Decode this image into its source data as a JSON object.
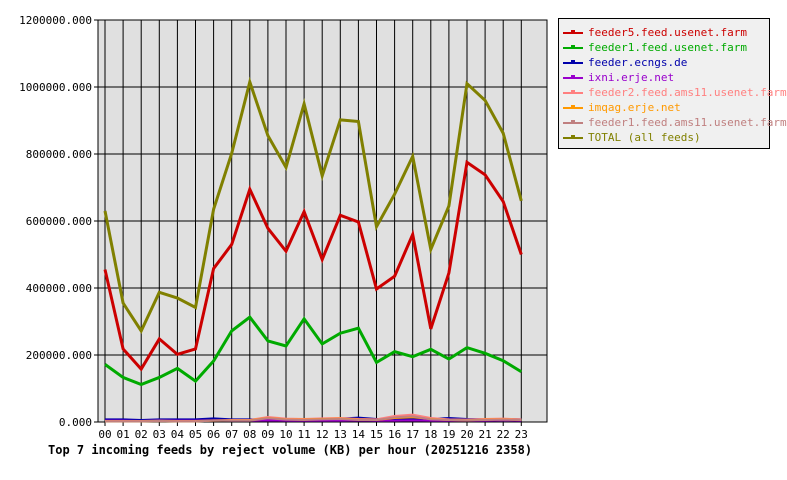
{
  "chart_data": {
    "type": "line",
    "title": "Top 7 incoming feeds by reject volume (KB) per hour (20251216 2358)",
    "xlabel": "",
    "ylabel": "",
    "ylim": [
      0,
      1200000
    ],
    "yticks": [
      0,
      200000,
      400000,
      600000,
      800000,
      1000000,
      1200000
    ],
    "ytick_labels": [
      "0.000",
      "200000.000",
      "400000.000",
      "600000.000",
      "800000.000",
      "1000000.000",
      "1200000.000"
    ],
    "categories": [
      "00",
      "01",
      "02",
      "03",
      "04",
      "05",
      "06",
      "07",
      "08",
      "09",
      "10",
      "11",
      "12",
      "13",
      "14",
      "15",
      "16",
      "17",
      "18",
      "19",
      "20",
      "21",
      "22",
      "23"
    ],
    "grid": true,
    "legend_position": "right",
    "series": [
      {
        "name": "feeder5.feed.usenet.farm",
        "color": "#cc0000",
        "values": [
          455000,
          218000,
          158000,
          248000,
          202000,
          218000,
          458000,
          530000,
          695000,
          578000,
          510000,
          628000,
          485000,
          617000,
          597000,
          397000,
          435000,
          560000,
          278000,
          445000,
          775000,
          738000,
          658000,
          500000
        ]
      },
      {
        "name": "feeder1.feed.usenet.farm",
        "color": "#00aa00",
        "values": [
          172000,
          133000,
          112000,
          133000,
          160000,
          122000,
          182000,
          272000,
          313000,
          242000,
          227000,
          308000,
          233000,
          265000,
          280000,
          178000,
          210000,
          195000,
          217000,
          188000,
          222000,
          205000,
          183000,
          150000
        ]
      },
      {
        "name": "feeder.ecngs.de",
        "color": "#0000aa",
        "values": [
          8000,
          8000,
          6000,
          8000,
          8000,
          8000,
          11000,
          8000,
          8000,
          8000,
          7000,
          8000,
          9000,
          10000,
          13000,
          9000,
          9000,
          11000,
          9000,
          12000,
          9000,
          8000,
          9000,
          8000
        ]
      },
      {
        "name": "ixni.erje.net",
        "color": "#9900cc",
        "values": [
          4000,
          4000,
          3000,
          4000,
          4000,
          4000,
          5000,
          4000,
          4000,
          5000,
          4000,
          4000,
          4000,
          4000,
          5000,
          4000,
          4000,
          5000,
          4000,
          4000,
          4000,
          4000,
          5000,
          4000
        ]
      },
      {
        "name": "feeder2.feed.ams11.usenet.farm",
        "color": "#ff8080",
        "values": [
          3000,
          3000,
          3000,
          4000,
          3000,
          3000,
          5000,
          6000,
          6000,
          15000,
          10000,
          9000,
          11000,
          12000,
          9000,
          8000,
          18000,
          22000,
          12000,
          8000,
          7000,
          9000,
          10000,
          8000
        ]
      },
      {
        "name": "imqag.erje.net",
        "color": "#ff9900",
        "values": [
          2000,
          2000,
          2000,
          3000,
          2000,
          2000,
          4000,
          5000,
          5000,
          12000,
          8000,
          7000,
          9000,
          10000,
          7000,
          6000,
          12000,
          14000,
          9000,
          6000,
          5000,
          7000,
          8000,
          6000
        ]
      },
      {
        "name": "feeder1.feed.ams11.usenet.farm",
        "color": "#c08080",
        "values": [
          2000,
          2000,
          2000,
          3000,
          2000,
          2000,
          4000,
          4000,
          4000,
          11000,
          7000,
          6000,
          8000,
          9000,
          6000,
          6000,
          14000,
          17000,
          8000,
          6000,
          5000,
          6000,
          7000,
          6000
        ]
      },
      {
        "name": "TOTAL (all feeds)",
        "color": "#808000",
        "values": [
          630000,
          355000,
          272000,
          387000,
          370000,
          342000,
          635000,
          802000,
          1015000,
          855000,
          760000,
          950000,
          735000,
          902000,
          897000,
          583000,
          680000,
          793000,
          515000,
          645000,
          1010000,
          960000,
          862000,
          660000
        ]
      }
    ]
  }
}
